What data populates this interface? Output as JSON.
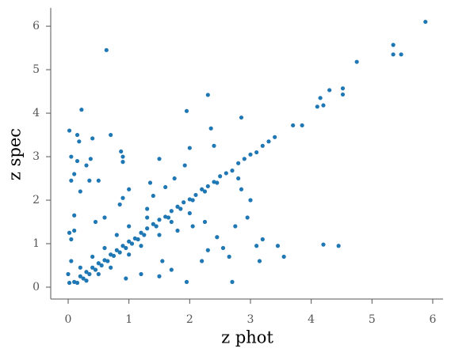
{
  "chart_data": {
    "type": "scatter",
    "x_label": "z phot",
    "y_label": "z spec",
    "color": "#1f77b4",
    "xlim": [
      -0.287,
      6.17
    ],
    "ylim": [
      -0.273,
      6.42
    ],
    "xticks": [
      0,
      1,
      2,
      3,
      4,
      5,
      6
    ],
    "yticks": [
      0,
      1,
      2,
      3,
      4,
      5,
      6
    ],
    "x": [
      5.88,
      5.35,
      5.35,
      5.48,
      4.75,
      0.63,
      4.52,
      4.52,
      4.3,
      4.15,
      4.2,
      4.1,
      2.3,
      1.95,
      2.85,
      0.22,
      3.85,
      3.7,
      2.35,
      0.02,
      0.15,
      0.7,
      0.18,
      0.4,
      0.87,
      0.9,
      0.9,
      0.05,
      0.15,
      0.3,
      0.37,
      0.1,
      0.05,
      0.2,
      0.35,
      0.5,
      1.5,
      2.0,
      2.4,
      1.92,
      2.8,
      2.85,
      3.0,
      1.0,
      0.9,
      0.85,
      0.6,
      0.45,
      0.1,
      0.1,
      0.02,
      0.05,
      0.05,
      0.0,
      0.02,
      2.3,
      2.55,
      2.65,
      3.1,
      3.2,
      3.15,
      3.45,
      3.55,
      2.95,
      2.75,
      4.2,
      4.45,
      2.7,
      1.95,
      1.7,
      1.5,
      1.2,
      0.95,
      1.55,
      2.2,
      2.05,
      2.25,
      2.45,
      1.3,
      1.4,
      1.6,
      1.75,
      1.35,
      0.1,
      0.2,
      0.3,
      0.4,
      0.5,
      0.6,
      0.7,
      0.8,
      0.9,
      1.0,
      1.1,
      1.2,
      1.3,
      1.4,
      1.5,
      1.6,
      1.7,
      1.8,
      1.9,
      2.0,
      2.1,
      2.2,
      2.3,
      2.4,
      2.5,
      2.6,
      2.7,
      2.8,
      2.9,
      3.0,
      3.1,
      3.2,
      3.3,
      3.4,
      0.15,
      0.25,
      0.35,
      0.45,
      0.55,
      0.65,
      0.75,
      0.85,
      0.95,
      1.05,
      1.15,
      1.25,
      1.45,
      1.65,
      1.85,
      2.05,
      2.25,
      2.45,
      0.3,
      0.5,
      0.7,
      1.0,
      1.2,
      1.5,
      0.4,
      0.6,
      0.8,
      1.0,
      1.3,
      1.7,
      1.8,
      2.0,
      0.2
    ],
    "values": [
      6.1,
      5.57,
      5.35,
      5.35,
      5.18,
      5.45,
      4.57,
      4.43,
      4.53,
      4.35,
      4.18,
      4.15,
      4.42,
      4.05,
      3.9,
      4.08,
      3.72,
      3.72,
      3.65,
      3.6,
      3.5,
      3.5,
      3.35,
      3.42,
      3.12,
      3.0,
      2.88,
      3.0,
      2.9,
      2.8,
      2.95,
      2.6,
      2.45,
      2.2,
      2.45,
      2.45,
      2.95,
      3.2,
      3.25,
      2.8,
      2.5,
      2.25,
      2.0,
      2.25,
      2.05,
      1.9,
      1.6,
      1.5,
      1.65,
      1.3,
      1.25,
      1.1,
      0.6,
      0.3,
      0.1,
      0.85,
      0.9,
      0.7,
      0.95,
      1.1,
      0.6,
      0.95,
      0.7,
      1.6,
      1.4,
      0.98,
      0.95,
      0.12,
      0.12,
      0.4,
      0.25,
      0.3,
      0.2,
      0.6,
      0.6,
      1.4,
      1.5,
      1.15,
      1.8,
      2.1,
      2.3,
      2.5,
      2.4,
      0.12,
      0.25,
      0.35,
      0.45,
      0.55,
      0.62,
      0.75,
      0.85,
      0.95,
      1.05,
      1.12,
      1.25,
      1.35,
      1.45,
      1.55,
      1.62,
      1.75,
      1.85,
      1.95,
      2.02,
      2.12,
      2.25,
      2.32,
      2.42,
      2.55,
      2.62,
      2.68,
      2.85,
      2.95,
      3.05,
      3.1,
      3.25,
      3.35,
      3.45,
      0.1,
      0.2,
      0.3,
      0.4,
      0.5,
      0.6,
      0.72,
      0.8,
      0.9,
      1.0,
      1.1,
      1.2,
      1.4,
      1.6,
      1.8,
      2.0,
      2.2,
      2.4,
      0.15,
      0.3,
      0.45,
      0.75,
      0.95,
      1.2,
      0.7,
      0.9,
      1.2,
      1.4,
      1.6,
      1.5,
      1.3,
      1.7,
      0.45
    ]
  }
}
